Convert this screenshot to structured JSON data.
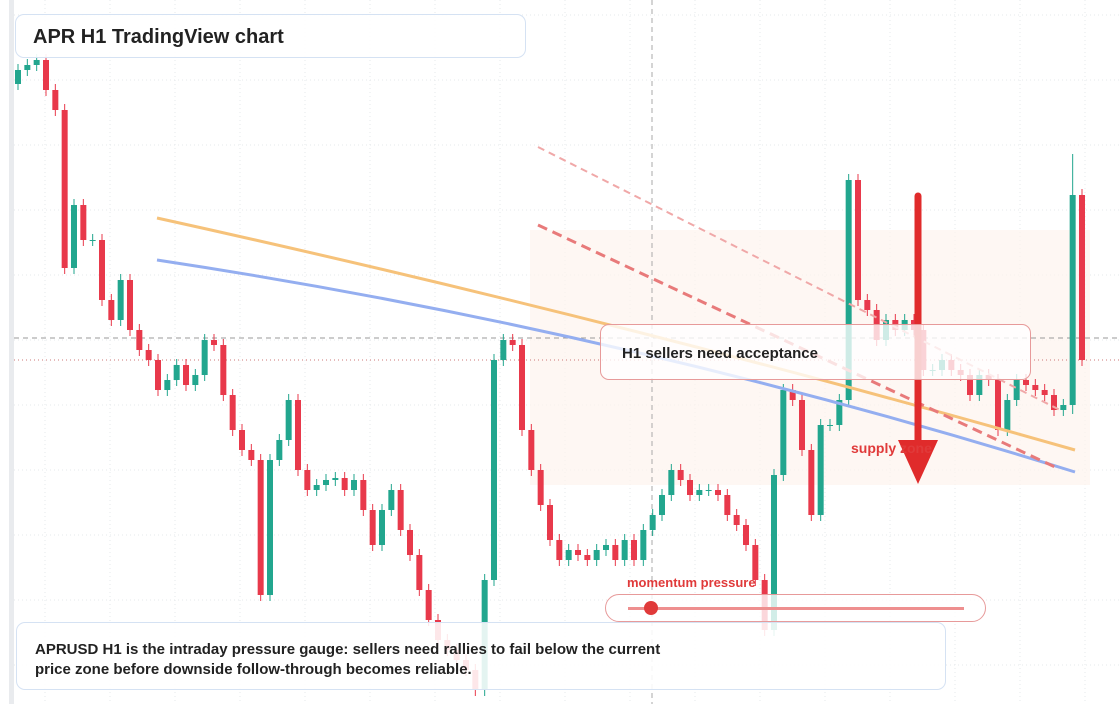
{
  "header": {
    "title": "APR H1 TradingView chart"
  },
  "chart_data": {
    "type": "candlestick",
    "ylim": [
      0,
      704
    ],
    "up_color": "#22a68e",
    "down_color": "#e8394b",
    "open": [
      620,
      634,
      639,
      644,
      614,
      594,
      436,
      499,
      464,
      464,
      404,
      384,
      424,
      374,
      354,
      344,
      314,
      324,
      339,
      319,
      329,
      364,
      359,
      309,
      274,
      254,
      244,
      109,
      244,
      264,
      304,
      234,
      214,
      219,
      224,
      226,
      214,
      224,
      194,
      159,
      194,
      214,
      174,
      149,
      114,
      84,
      64,
      54,
      44,
      34,
      14,
      124,
      344,
      364,
      359,
      274,
      234,
      199,
      164,
      144,
      154,
      149,
      144,
      154,
      159,
      144,
      164,
      144,
      174,
      189,
      209,
      234,
      224,
      209,
      214,
      214,
      209,
      189,
      179,
      159,
      124,
      74,
      229,
      314,
      304,
      254,
      189,
      279,
      279,
      304,
      524,
      404,
      394,
      364,
      384,
      374,
      384,
      374,
      334,
      334,
      344,
      334,
      329,
      309,
      329,
      324,
      274,
      304,
      324,
      319,
      314,
      309,
      294,
      299,
      509
    ],
    "high": [
      640,
      645,
      650,
      650,
      620,
      600,
      505,
      505,
      470,
      470,
      410,
      430,
      430,
      380,
      360,
      350,
      330,
      345,
      345,
      335,
      370,
      370,
      365,
      315,
      280,
      260,
      250,
      250,
      270,
      310,
      310,
      240,
      225,
      230,
      232,
      232,
      230,
      230,
      200,
      200,
      220,
      220,
      180,
      155,
      120,
      90,
      70,
      60,
      50,
      40,
      130,
      350,
      370,
      370,
      365,
      280,
      240,
      205,
      170,
      160,
      160,
      155,
      160,
      165,
      165,
      170,
      170,
      180,
      195,
      215,
      240,
      240,
      230,
      220,
      220,
      220,
      215,
      195,
      185,
      165,
      130,
      235,
      320,
      320,
      310,
      260,
      285,
      285,
      310,
      530,
      530,
      410,
      400,
      390,
      390,
      390,
      390,
      380,
      340,
      350,
      350,
      340,
      335,
      335,
      335,
      330,
      310,
      330,
      330,
      325,
      320,
      315,
      305,
      550,
      515
    ],
    "low": [
      614,
      628,
      633,
      608,
      588,
      430,
      430,
      458,
      458,
      398,
      378,
      378,
      368,
      348,
      338,
      308,
      308,
      318,
      313,
      313,
      323,
      353,
      303,
      268,
      248,
      238,
      103,
      103,
      238,
      258,
      228,
      208,
      208,
      213,
      218,
      208,
      208,
      188,
      153,
      153,
      188,
      168,
      143,
      108,
      78,
      58,
      48,
      38,
      28,
      8,
      8,
      118,
      338,
      353,
      268,
      228,
      193,
      158,
      138,
      138,
      143,
      138,
      138,
      148,
      138,
      138,
      138,
      138,
      168,
      183,
      203,
      218,
      203,
      203,
      208,
      203,
      183,
      173,
      153,
      118,
      68,
      68,
      223,
      298,
      248,
      183,
      183,
      273,
      273,
      298,
      398,
      388,
      358,
      358,
      368,
      368,
      368,
      328,
      328,
      328,
      328,
      323,
      303,
      303,
      318,
      268,
      268,
      298,
      313,
      308,
      303,
      288,
      288,
      290,
      338
    ],
    "close": [
      634,
      639,
      644,
      614,
      594,
      436,
      499,
      464,
      464,
      404,
      384,
      424,
      374,
      354,
      344,
      314,
      324,
      339,
      319,
      329,
      364,
      359,
      309,
      274,
      254,
      244,
      109,
      244,
      264,
      304,
      234,
      214,
      219,
      224,
      226,
      214,
      224,
      194,
      159,
      194,
      214,
      174,
      149,
      114,
      84,
      64,
      54,
      44,
      34,
      14,
      124,
      344,
      364,
      359,
      274,
      234,
      199,
      164,
      144,
      154,
      149,
      144,
      154,
      159,
      144,
      164,
      144,
      174,
      189,
      209,
      234,
      224,
      209,
      214,
      214,
      209,
      189,
      179,
      159,
      124,
      74,
      229,
      314,
      304,
      254,
      189,
      279,
      279,
      304,
      524,
      404,
      394,
      364,
      384,
      374,
      384,
      374,
      334,
      334,
      344,
      334,
      329,
      309,
      329,
      324,
      274,
      304,
      324,
      319,
      314,
      309,
      294,
      299,
      509,
      344
    ]
  },
  "annotations": {
    "callout": "H1 sellers need acceptance",
    "zone_label": "supply zone",
    "gauge_label": "momentum pressure"
  },
  "footer": {
    "text": "APRUSD H1 is the intraday pressure gauge: sellers need rallies to fail below the current price zone before downside follow-through becomes reliable."
  }
}
